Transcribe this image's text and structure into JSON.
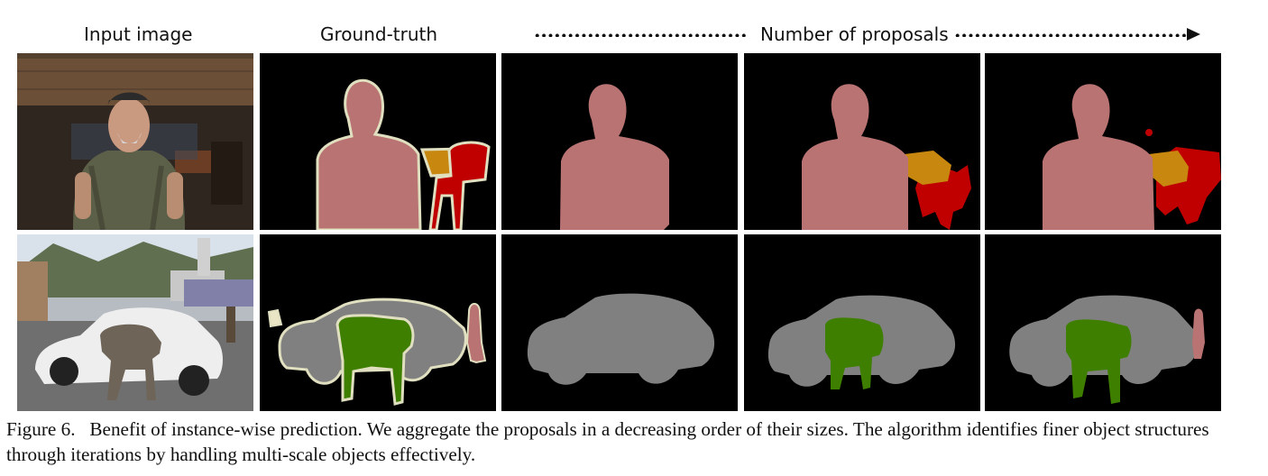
{
  "headers": {
    "input": "Input image",
    "ground_truth": "Ground-truth",
    "proposals": "Number of proposals"
  },
  "colors": {
    "person": "#b97372",
    "chair": "#c00000",
    "table": "#c8870f",
    "car": "#808080",
    "cow": "#3f7f00",
    "boundary": "#e0dfc0",
    "background": "#000000"
  },
  "caption": {
    "label": "Figure 6.",
    "text": "Benefit of instance-wise prediction. We aggregate the proposals in a decreasing order of their sizes. The algorithm identifies finer object structures through iterations by handling multi-scale objects effectively."
  }
}
